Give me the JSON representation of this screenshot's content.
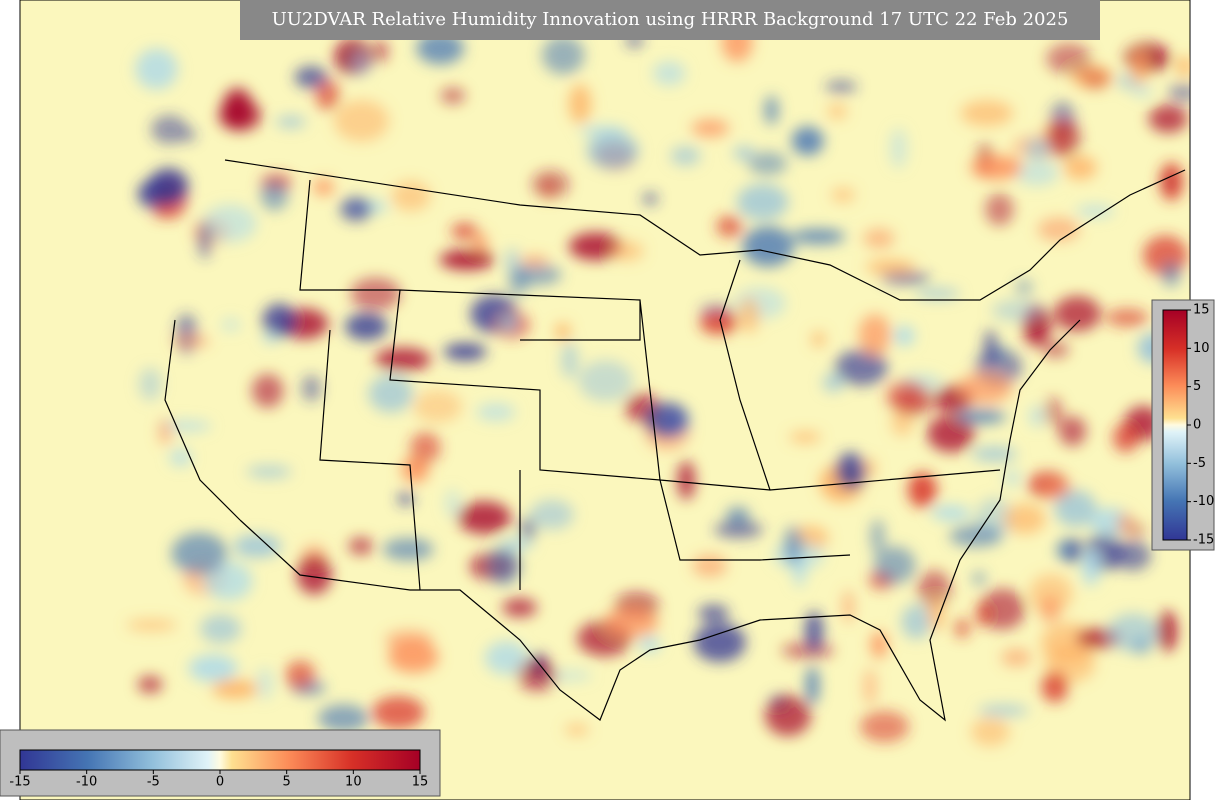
{
  "title": "UU2DVAR Relative Humidity Innovation using HRRR Background 17 UTC 22 Feb 2025",
  "colorbar_bottom": {
    "lim": [
      -15,
      15
    ],
    "ticks": [
      -15,
      -10,
      -5,
      0,
      5,
      10,
      15
    ]
  },
  "colorbar_right": {
    "lim": [
      -15,
      15
    ],
    "ticks": [
      -15,
      -10,
      -5,
      0,
      5,
      10,
      15
    ]
  }
}
